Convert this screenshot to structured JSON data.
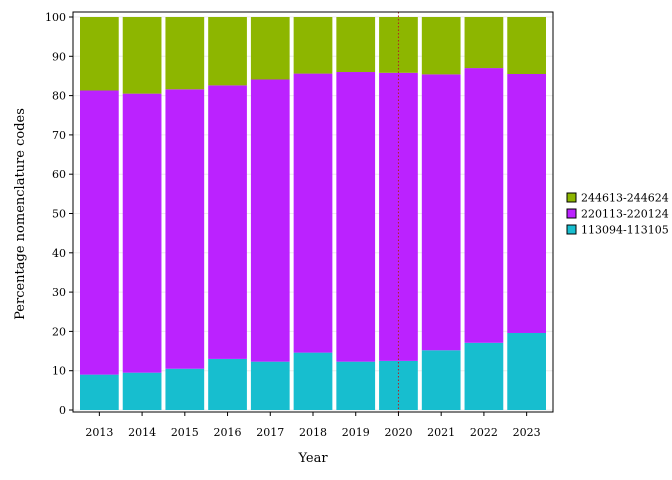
{
  "chart_data": {
    "type": "bar",
    "stacked": true,
    "categories": [
      "2013",
      "2014",
      "2015",
      "2016",
      "2017",
      "2018",
      "2019",
      "2020",
      "2021",
      "2022",
      "2023"
    ],
    "series": [
      {
        "name": "113094-113105",
        "color": "#17becf",
        "values": [
          9.0,
          9.5,
          10.5,
          13.0,
          12.3,
          14.6,
          12.3,
          12.5,
          15.2,
          17.1,
          19.6
        ]
      },
      {
        "name": "220113-220124",
        "color": "#bb22ff",
        "values": [
          72.3,
          71.0,
          71.1,
          69.6,
          71.8,
          71.0,
          73.7,
          73.3,
          70.2,
          69.9,
          65.9
        ]
      },
      {
        "name": "244613-244624",
        "color": "#8db600",
        "values": [
          18.7,
          19.5,
          18.4,
          17.4,
          15.9,
          14.4,
          14.0,
          14.2,
          14.6,
          13.0,
          14.5
        ]
      }
    ],
    "xlabel": "Year",
    "ylabel": "Percentage nomenclature codes",
    "ylim": [
      0,
      100
    ],
    "yticks": [
      "0",
      "10",
      "20",
      "30",
      "40",
      "50",
      "60",
      "70",
      "80",
      "90",
      "100"
    ],
    "reference_line": {
      "x": "2020",
      "color": "#b22222",
      "style": "dotted"
    },
    "legend": {
      "position": "right",
      "entries": [
        "244613-244624",
        "220113-220124",
        "113094-113105"
      ]
    }
  }
}
